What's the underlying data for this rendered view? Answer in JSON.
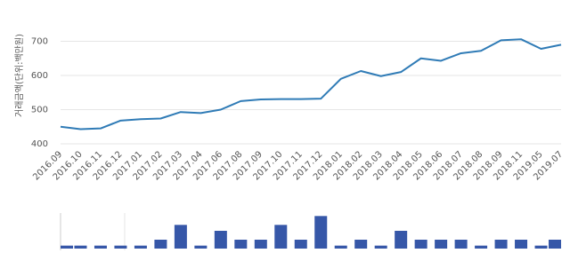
{
  "chart_data": [
    {
      "type": "line",
      "y_label": "거래금액(단위:백만원)",
      "categories": [
        "2016.09",
        "2016.10",
        "2016.11",
        "2016.12",
        "2017.01",
        "2017.02",
        "2017.03",
        "2017.04",
        "2017.06",
        "2017.08",
        "2017.09",
        "2017.10",
        "2017.11",
        "2017.12",
        "2018.01",
        "2018.02",
        "2018.03",
        "2018.04",
        "2018.05",
        "2018.06",
        "2018.07",
        "2018.08",
        "2018.09",
        "2018.11",
        "2019.05",
        "2019.07"
      ],
      "values": [
        450,
        443,
        445,
        468,
        472,
        474,
        493,
        490,
        500,
        525,
        530,
        531,
        531,
        532,
        590,
        613,
        598,
        610,
        650,
        643,
        665,
        672,
        703,
        706,
        678,
        690
      ],
      "color": "#2f7bb6",
      "ylim": [
        400,
        800
      ],
      "yticks": [
        400,
        500,
        600,
        700
      ],
      "grid": true
    },
    {
      "type": "bar",
      "values": [
        1,
        1,
        1,
        1,
        1,
        3,
        8,
        1,
        6,
        3,
        3,
        8,
        3,
        11,
        1,
        3,
        1,
        6,
        3,
        3,
        3,
        1,
        3,
        3,
        1,
        3
      ],
      "color": "#3657a8",
      "ylim": [
        0,
        12
      ]
    }
  ]
}
